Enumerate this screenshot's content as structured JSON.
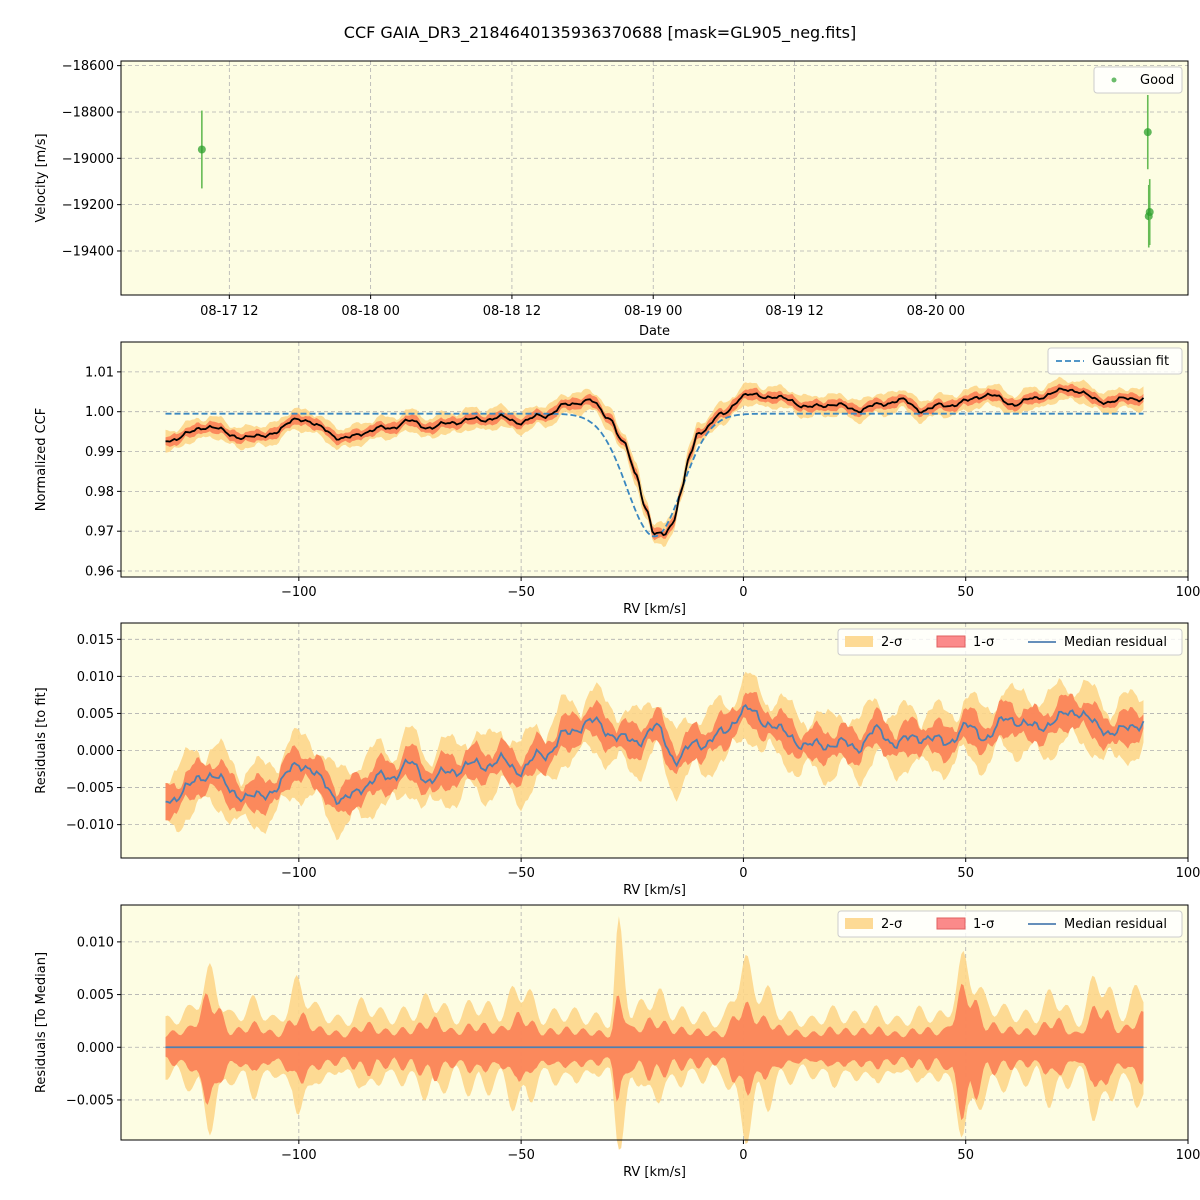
{
  "figure": {
    "title": "CCF GAIA_DR3_2184640135936370688 [mask=GL905_neg.fits]"
  },
  "colors": {
    "panel_bg": "#fdfde3",
    "grid": "#b0b0b0",
    "good_points": "#2ca02c",
    "good_errorbar": "#66bb55",
    "band_2sigma": "#fdd68a",
    "band_1sigma": "#fb7f56",
    "median_ccf": "#000000",
    "gaussian_fit": "#3a87c0",
    "median_residual": "#4f7fb0"
  },
  "chart_data": [
    {
      "type": "scatter",
      "xlabel": "Date",
      "ylabel": "Velocity [m/s]",
      "x_ticks": [
        "08-17 12",
        "08-18 00",
        "08-18 12",
        "08-19 00",
        "08-19 12",
        "08-20 00"
      ],
      "x_range": [
        "2023-08-17 02:48",
        "2023-08-20 21:25"
      ],
      "ylim": [
        -19590,
        -18580
      ],
      "y_ticks": [
        -18600,
        -18800,
        -19000,
        -19200,
        -19400
      ],
      "grid": true,
      "legend": {
        "placement": "top-right",
        "entries": [
          "Good"
        ]
      },
      "series": [
        {
          "name": "Good",
          "x": [
            "2023-08-17 09:40",
            "2023-08-20 18:00",
            "2023-08-20 18:05",
            "2023-08-20 18:10"
          ],
          "y": [
            -18962,
            -18887,
            -19250,
            -19232
          ],
          "yerr": [
            168,
            160,
            135,
            142
          ]
        }
      ]
    },
    {
      "type": "line",
      "xlabel": "RV [km/s]",
      "ylabel": "Normalized CCF",
      "xlim": [
        -140,
        100
      ],
      "x_ticks": [
        -100,
        -50,
        0,
        50,
        100
      ],
      "ylim": [
        0.9585,
        1.0175
      ],
      "y_ticks": [
        0.96,
        0.97,
        0.98,
        0.99,
        1.0,
        1.01
      ],
      "y_tick_labels": [
        "0.96",
        "0.97",
        "0.98",
        "0.99",
        "1.00",
        "1.01"
      ],
      "grid": true,
      "legend": {
        "placement": "top-right",
        "entries": [
          "Gaussian fit"
        ]
      },
      "gaussian_fit": {
        "continuum": 0.9995,
        "depth": 0.0308,
        "center": -20.0,
        "sigma": 6.2
      },
      "rv": [
        -130,
        -125,
        -120,
        -115,
        -110,
        -105,
        -100,
        -95,
        -90,
        -85,
        -80,
        -75,
        -70,
        -65,
        -60,
        -55,
        -50,
        -45,
        -40,
        -35,
        -30,
        -27,
        -24,
        -22,
        -20,
        -18,
        -16,
        -14,
        -12,
        -10,
        -5,
        0,
        5,
        10,
        15,
        20,
        25,
        30,
        35,
        40,
        45,
        50,
        55,
        60,
        65,
        70,
        75,
        80,
        85,
        90
      ],
      "median": [
        0.9925,
        0.9945,
        0.9965,
        0.994,
        0.9935,
        0.995,
        0.9985,
        0.996,
        0.993,
        0.995,
        0.996,
        0.9975,
        0.996,
        0.9975,
        0.998,
        0.9985,
        0.9975,
        0.999,
        1.0015,
        1.003,
        0.9985,
        0.992,
        0.984,
        0.976,
        0.969,
        0.969,
        0.972,
        0.98,
        0.989,
        0.995,
        0.999,
        1.004,
        1.004,
        1.003,
        1.001,
        1.002,
        1.0005,
        1.0015,
        1.003,
        1.0005,
        1.0015,
        1.0025,
        1.0045,
        1.002,
        1.003,
        1.005,
        1.0055,
        1.0025,
        1.003,
        1.0035
      ],
      "band_1sigma_halfwidth": 0.0015,
      "band_2sigma_halfwidth": 0.003
    },
    {
      "type": "line",
      "xlabel": "RV [km/s]",
      "ylabel": "Residuals [to fit]",
      "xlim": [
        -140,
        100
      ],
      "x_ticks": [
        -100,
        -50,
        0,
        50,
        100
      ],
      "ylim": [
        -0.0145,
        0.0172
      ],
      "y_ticks": [
        -0.01,
        -0.005,
        0.0,
        0.005,
        0.01,
        0.015
      ],
      "y_tick_labels": [
        "−0.010",
        "−0.005",
        "0.000",
        "0.005",
        "0.010",
        "0.015"
      ],
      "grid": true,
      "legend": {
        "placement": "top-right",
        "entries": [
          "2-σ",
          "1-σ",
          "Median residual"
        ]
      },
      "rv": [
        -130,
        -125,
        -120,
        -115,
        -110,
        -105,
        -100,
        -95,
        -90,
        -85,
        -80,
        -75,
        -70,
        -65,
        -60,
        -55,
        -50,
        -45,
        -40,
        -35,
        -30,
        -25,
        -20,
        -15,
        -10,
        -5,
        0,
        5,
        10,
        15,
        20,
        25,
        30,
        35,
        40,
        45,
        50,
        55,
        60,
        65,
        70,
        75,
        80,
        85,
        90
      ],
      "median": [
        -0.007,
        -0.005,
        -0.003,
        -0.0055,
        -0.0065,
        -0.005,
        -0.0015,
        -0.004,
        -0.007,
        -0.0045,
        -0.0035,
        -0.002,
        -0.004,
        -0.0025,
        -0.002,
        -0.0015,
        -0.0025,
        -0.0005,
        0.002,
        0.004,
        0.0025,
        0.001,
        0.003,
        -0.001,
        0.001,
        0.002,
        0.0055,
        0.004,
        0.002,
        0.0005,
        0.001,
        0.0005,
        0.0025,
        0.001,
        0.002,
        0.001,
        0.003,
        0.002,
        0.0045,
        0.003,
        0.004,
        0.0055,
        0.003,
        0.0025,
        0.004
      ],
      "band_1sigma_halfwidth": 0.0018,
      "band_2sigma_halfwidth": 0.0035
    },
    {
      "type": "area",
      "xlabel": "RV [km/s]",
      "ylabel": "Residuals [To Median]",
      "xlim": [
        -140,
        100
      ],
      "x_ticks": [
        -100,
        -50,
        0,
        50,
        100
      ],
      "ylim": [
        -0.0088,
        0.0135
      ],
      "y_ticks": [
        -0.005,
        0.0,
        0.005,
        0.01
      ],
      "y_tick_labels": [
        "−0.005",
        "0.000",
        "0.005",
        "0.010"
      ],
      "grid": true,
      "legend": {
        "placement": "top-right",
        "entries": [
          "2-σ",
          "1-σ",
          "Median residual"
        ]
      },
      "rv": [
        -130,
        -125,
        -120,
        -115,
        -110,
        -105,
        -100,
        -95,
        -90,
        -85,
        -80,
        -75,
        -70,
        -65,
        -60,
        -55,
        -50,
        -45,
        -40,
        -35,
        -30,
        -28,
        -25,
        -20,
        -15,
        -10,
        -5,
        0,
        5,
        10,
        15,
        20,
        25,
        30,
        35,
        40,
        45,
        50,
        55,
        60,
        65,
        70,
        75,
        80,
        85,
        90
      ],
      "sigma1_upper": [
        0.0015,
        0.002,
        0.0055,
        0.0018,
        0.0025,
        0.0015,
        0.0035,
        0.002,
        0.0015,
        0.0025,
        0.0018,
        0.002,
        0.003,
        0.0018,
        0.0025,
        0.002,
        0.0035,
        0.0018,
        0.002,
        0.0018,
        0.0015,
        0.0055,
        0.002,
        0.003,
        0.002,
        0.0018,
        0.0015,
        0.0045,
        0.003,
        0.0018,
        0.0015,
        0.002,
        0.0018,
        0.002,
        0.0015,
        0.002,
        0.0018,
        0.0065,
        0.0025,
        0.002,
        0.0018,
        0.003,
        0.0015,
        0.0045,
        0.002,
        0.0035
      ],
      "sigma2_upper": [
        0.003,
        0.004,
        0.008,
        0.0035,
        0.005,
        0.003,
        0.007,
        0.004,
        0.003,
        0.005,
        0.0035,
        0.004,
        0.0055,
        0.0035,
        0.005,
        0.004,
        0.007,
        0.0035,
        0.004,
        0.0035,
        0.003,
        0.0125,
        0.004,
        0.006,
        0.004,
        0.0035,
        0.003,
        0.009,
        0.006,
        0.0035,
        0.003,
        0.004,
        0.0035,
        0.004,
        0.003,
        0.004,
        0.0035,
        0.0095,
        0.005,
        0.004,
        0.0035,
        0.006,
        0.003,
        0.008,
        0.004,
        0.007
      ],
      "median": 0.0
    }
  ]
}
